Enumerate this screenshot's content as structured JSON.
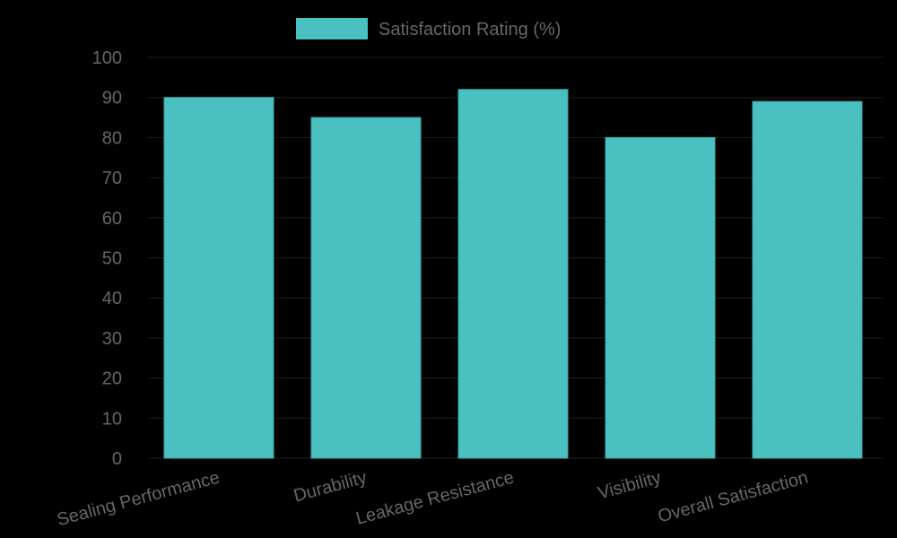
{
  "chart_data": {
    "type": "bar",
    "title": "",
    "xlabel": "",
    "ylabel": "",
    "categories": [
      "Sealing Performance",
      "Durability",
      "Leakage Resistance",
      "Visibility",
      "Overall Satisfaction"
    ],
    "series": [
      {
        "name": "Satisfaction Rating (%)",
        "values": [
          90,
          85,
          92,
          80,
          89
        ],
        "color": "#4BC0C0"
      }
    ],
    "ylim": [
      0,
      100
    ],
    "yticks": [
      0,
      10,
      20,
      30,
      40,
      50,
      60,
      70,
      80,
      90,
      100
    ],
    "grid": true,
    "legend_position": "top"
  },
  "legend": {
    "label": "Satisfaction Rating (%)"
  },
  "colors": {
    "bar": "#4BC0C0",
    "bar_border": "#3aa9a9",
    "grid": "#1f1f1f",
    "text": "#666666",
    "background": "#000000"
  }
}
